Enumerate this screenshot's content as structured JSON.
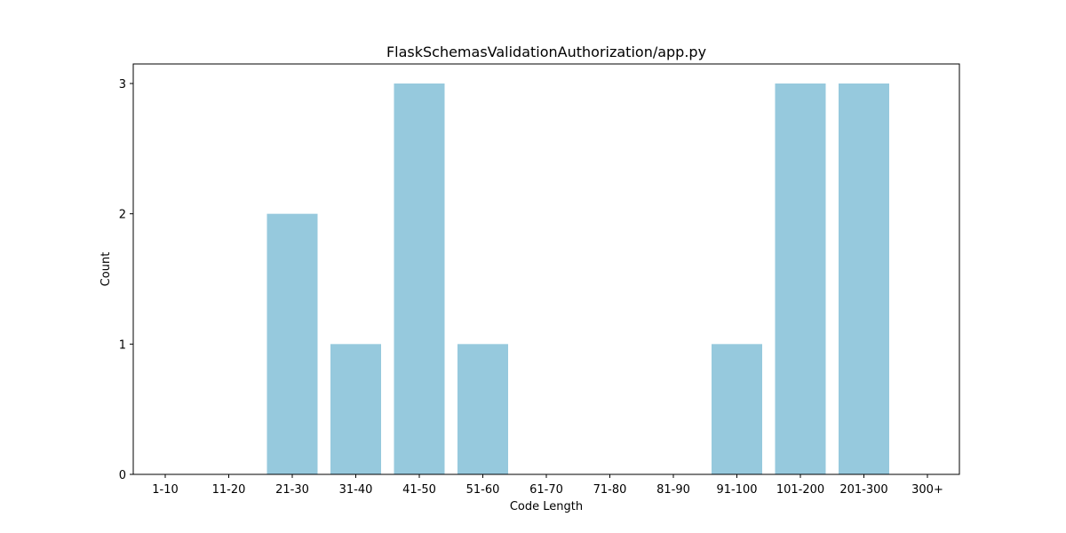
{
  "chart_data": {
    "type": "bar",
    "title": "FlaskSchemasValidationAuthorization/app.py",
    "xlabel": "Code Length",
    "ylabel": "Count",
    "categories": [
      "1-10",
      "11-20",
      "21-30",
      "31-40",
      "41-50",
      "51-60",
      "61-70",
      "71-80",
      "81-90",
      "91-100",
      "101-200",
      "201-300",
      "300+"
    ],
    "values": [
      0,
      0,
      2,
      1,
      3,
      1,
      0,
      0,
      0,
      1,
      3,
      3,
      0
    ],
    "ylim": [
      0,
      3.15
    ],
    "yticks": [
      0,
      1,
      2,
      3
    ],
    "bar_color": "#96c9dd",
    "grid": false,
    "legend": "none"
  }
}
